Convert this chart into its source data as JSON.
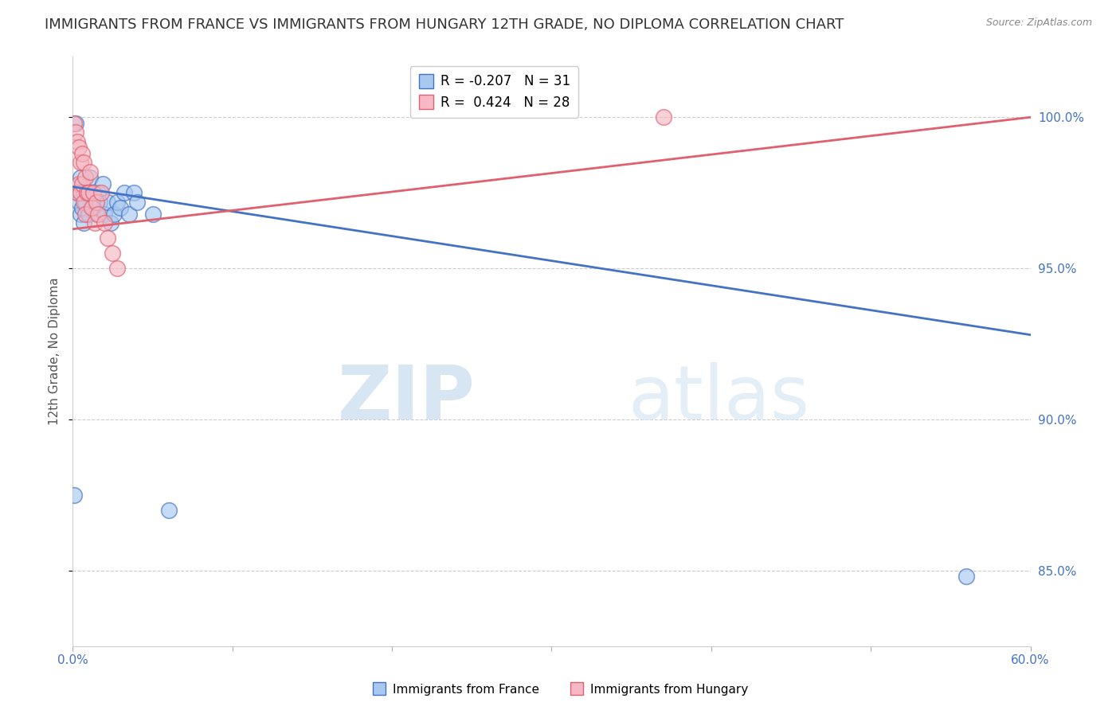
{
  "title": "IMMIGRANTS FROM FRANCE VS IMMIGRANTS FROM HUNGARY 12TH GRADE, NO DIPLOMA CORRELATION CHART",
  "source": "Source: ZipAtlas.com",
  "ylabel": "12th Grade, No Diploma",
  "ytick_labels": [
    "85.0%",
    "90.0%",
    "95.0%",
    "100.0%"
  ],
  "ytick_values": [
    0.85,
    0.9,
    0.95,
    1.0
  ],
  "xlim": [
    0.0,
    0.6
  ],
  "ylim": [
    0.825,
    1.02
  ],
  "blue_color": "#A8C8F0",
  "pink_color": "#F5B8C4",
  "blue_line_color": "#4472C4",
  "pink_line_color": "#E06070",
  "legend_blue_R": "-0.207",
  "legend_blue_N": "31",
  "legend_pink_R": "0.424",
  "legend_pink_N": "28",
  "watermark_zip": "ZIP",
  "watermark_atlas": "atlas",
  "blue_scatter_x": [
    0.002,
    0.003,
    0.004,
    0.005,
    0.005,
    0.006,
    0.007,
    0.007,
    0.008,
    0.01,
    0.011,
    0.012,
    0.013,
    0.015,
    0.016,
    0.017,
    0.019,
    0.02,
    0.022,
    0.024,
    0.026,
    0.028,
    0.03,
    0.032,
    0.035,
    0.038,
    0.04,
    0.05,
    0.06,
    0.56,
    0.001
  ],
  "blue_scatter_y": [
    0.998,
    0.975,
    0.972,
    0.98,
    0.968,
    0.97,
    0.975,
    0.965,
    0.972,
    0.968,
    0.98,
    0.975,
    0.97,
    0.968,
    0.975,
    0.972,
    0.978,
    0.968,
    0.972,
    0.965,
    0.968,
    0.972,
    0.97,
    0.975,
    0.968,
    0.975,
    0.972,
    0.968,
    0.87,
    0.848,
    0.875
  ],
  "pink_scatter_x": [
    0.001,
    0.002,
    0.003,
    0.003,
    0.004,
    0.004,
    0.005,
    0.005,
    0.006,
    0.006,
    0.007,
    0.007,
    0.008,
    0.008,
    0.009,
    0.01,
    0.011,
    0.012,
    0.013,
    0.014,
    0.015,
    0.016,
    0.018,
    0.02,
    0.022,
    0.025,
    0.028,
    0.37
  ],
  "pink_scatter_y": [
    0.998,
    0.995,
    0.992,
    0.975,
    0.99,
    0.978,
    0.985,
    0.975,
    0.988,
    0.978,
    0.985,
    0.972,
    0.98,
    0.968,
    0.975,
    0.975,
    0.982,
    0.97,
    0.975,
    0.965,
    0.972,
    0.968,
    0.975,
    0.965,
    0.96,
    0.955,
    0.95,
    1.0
  ],
  "blue_line_x0": 0.0,
  "blue_line_x1": 0.6,
  "blue_line_y0": 0.977,
  "blue_line_y1": 0.928,
  "pink_line_x0": 0.0,
  "pink_line_x1": 0.6,
  "pink_line_y0": 0.963,
  "pink_line_y1": 1.0,
  "grid_color": "#cccccc",
  "background_color": "#ffffff",
  "title_fontsize": 13,
  "axis_label_fontsize": 11,
  "tick_fontsize": 11,
  "right_tick_color": "#4472C4",
  "bottom_tick_color": "#4472C4"
}
